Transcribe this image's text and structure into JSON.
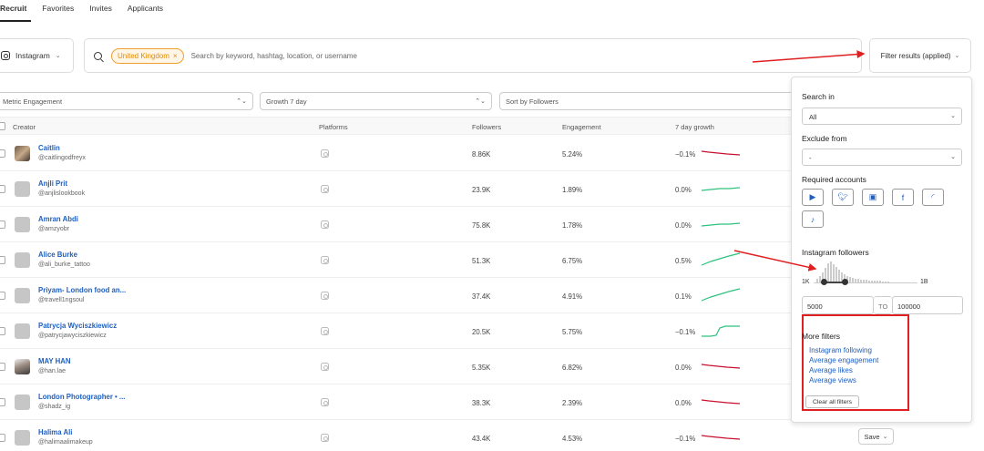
{
  "tabs": [
    "Recruit",
    "Favorites",
    "Invites",
    "Applicants"
  ],
  "platform": {
    "label": "Instagram",
    "icon": "instagram-icon"
  },
  "search": {
    "chip": "United Kingdom",
    "placeholder": "Search by keyword, hashtag, location, or username"
  },
  "filter_button": "Filter results (applied)",
  "sorts": {
    "metric": "Metric Engagement",
    "growth": "Growth 7 day",
    "sort": "Sort by Followers"
  },
  "columns": {
    "creator": "Creator",
    "platforms": "Platforms",
    "followers": "Followers",
    "engagement": "Engagement",
    "growth": "7 day growth"
  },
  "rows": [
    {
      "name": "Caitlin",
      "handle": "@caitlingodfreyx",
      "followers": "8.86K",
      "engagement": "5.24%",
      "growth": "−0.1%",
      "trend": "down"
    },
    {
      "name": "Anjli Prit",
      "handle": "@anjlislookbook",
      "followers": "23.9K",
      "engagement": "1.89%",
      "growth": "0.0%",
      "trend": "flat-up"
    },
    {
      "name": "Amran Abdi",
      "handle": "@amzyobr",
      "followers": "75.8K",
      "engagement": "1.78%",
      "growth": "0.0%",
      "trend": "flat-up"
    },
    {
      "name": "Alice Burke",
      "handle": "@ali_burke_tattoo",
      "followers": "51.3K",
      "engagement": "6.75%",
      "growth": "0.5%",
      "trend": "up"
    },
    {
      "name": "Priyam- London food an...",
      "handle": "@travell1ngsoul",
      "followers": "37.4K",
      "engagement": "4.91%",
      "growth": "0.1%",
      "trend": "up"
    },
    {
      "name": "Patrycja Wyciszkiewicz",
      "handle": "@patrycjawyciszkiewicz",
      "followers": "20.5K",
      "engagement": "5.75%",
      "growth": "−0.1%",
      "trend": "step-up"
    },
    {
      "name": "MAY HAN",
      "handle": "@han.lae",
      "followers": "5.35K",
      "engagement": "6.82%",
      "growth": "0.0%",
      "trend": "down"
    },
    {
      "name": "London Photographer • ...",
      "handle": "@shadz_ig",
      "followers": "38.3K",
      "engagement": "2.39%",
      "growth": "0.0%",
      "trend": "down"
    },
    {
      "name": "Halima Ali",
      "handle": "@halimaalimakeup",
      "followers": "43.4K",
      "engagement": "4.53%",
      "growth": "−0.1%",
      "trend": "down"
    }
  ],
  "colors": {
    "link": "#1e5fbf",
    "up": "#2ec27e",
    "down": "#c8102e",
    "chip": "#e58a00",
    "annotation": "#e02020"
  },
  "panel": {
    "search_in_label": "Search in",
    "search_in_value": "All",
    "exclude_label": "Exclude from",
    "exclude_value": "-",
    "required_label": "Required accounts",
    "required_icons": [
      "youtube-icon",
      "twitter-icon",
      "twitch-icon",
      "facebook-icon",
      "rss-icon",
      "tiktok-icon"
    ],
    "followers_label": "Instagram followers",
    "range_min": "1K",
    "range_max": "1B",
    "min_value": "5000",
    "to_label": "TO",
    "max_value": "100000",
    "more_label": "More filters",
    "more_links": [
      "Instagram following",
      "Average engagement",
      "Average likes",
      "Average views"
    ],
    "clear_label": "Clear all filters"
  },
  "save_label": "Save"
}
